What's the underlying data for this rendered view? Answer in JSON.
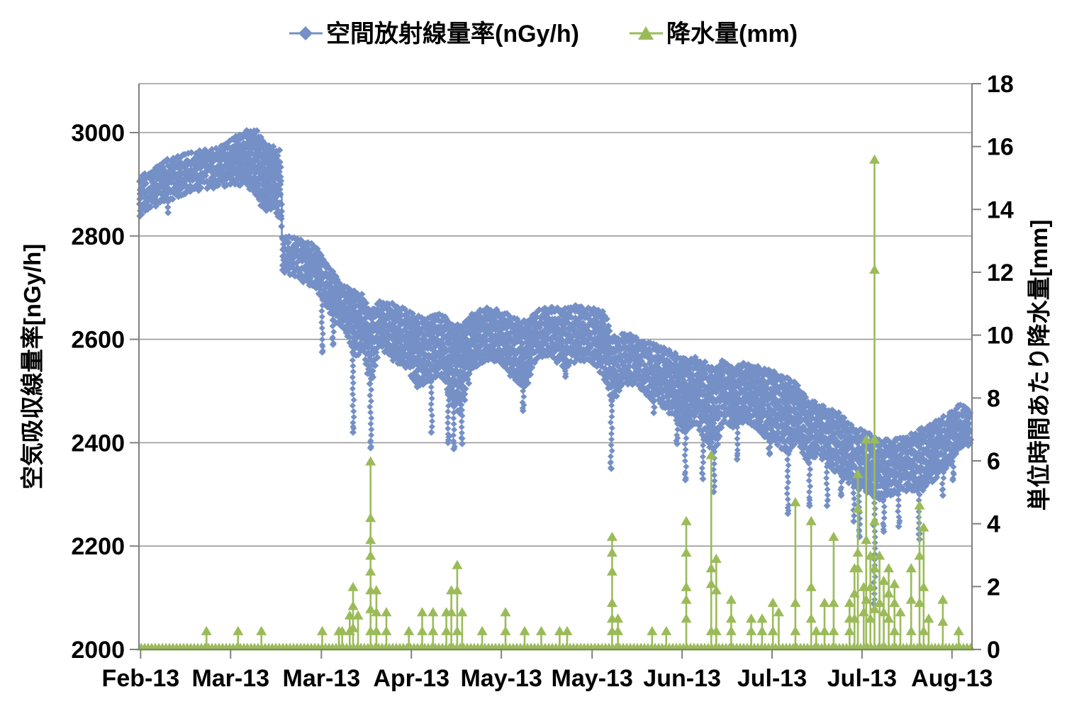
{
  "page": {
    "background": "#ffffff"
  },
  "colors": {
    "radiation_blue": "#7590C6",
    "radiation_blue_line": "#6E89C0",
    "precipitation_green": "#9BBB59",
    "gridline": "#9A9A9A",
    "axis_line": "#808080"
  },
  "legend": {
    "items": [
      {
        "label": "空間放射線量率(nGy/h)",
        "marker": "diamond",
        "color": "#7590C6"
      },
      {
        "label": "降水量(mm)",
        "marker": "triangle",
        "color": "#9BBB59"
      }
    ]
  },
  "chart_data": {
    "type": "scatter",
    "title": "",
    "x_axis": {
      "tick_labels": [
        "Feb-13",
        "Mar-13",
        "Mar-13",
        "Apr-13",
        "May-13",
        "May-13",
        "Jun-13",
        "Jul-13",
        "Jul-13",
        "Aug-13"
      ],
      "tick_positions": [
        0.002,
        0.11,
        0.219,
        0.327,
        0.435,
        0.544,
        0.652,
        0.76,
        0.868,
        0.976
      ]
    },
    "y_axis_left": {
      "title": "空気吸収線量率[nGy/h]",
      "ticks": [
        3000,
        2800,
        2600,
        2400,
        2200,
        2000
      ],
      "min": 2000,
      "max_at_frame_top": 3094
    },
    "y_axis_right": {
      "title": "単位時間あたり降水量[mm]",
      "ticks": [
        18,
        16,
        14,
        12,
        10,
        8,
        6,
        4,
        2,
        0
      ],
      "min": 0,
      "max": 18
    },
    "series": [
      {
        "name": "空間放射線量率(nGy/h)",
        "axis": "left",
        "marker": "diamond",
        "color": "#7590C6",
        "band": [
          [
            0.0,
            2840,
            2910
          ],
          [
            0.029,
            2868,
            2942
          ],
          [
            0.063,
            2888,
            2958
          ],
          [
            0.097,
            2898,
            2968
          ],
          [
            0.127,
            2902,
            3000
          ],
          [
            0.14,
            2882,
            3005
          ],
          [
            0.152,
            2846,
            2978
          ],
          [
            0.161,
            2862,
            2972
          ],
          [
            0.17,
            2830,
            2962
          ],
          [
            0.172,
            2735,
            2800
          ],
          [
            0.191,
            2722,
            2792
          ],
          [
            0.212,
            2700,
            2778
          ],
          [
            0.22,
            2682,
            2758
          ],
          [
            0.233,
            2642,
            2732
          ],
          [
            0.246,
            2620,
            2702
          ],
          [
            0.259,
            2568,
            2692
          ],
          [
            0.269,
            2582,
            2682
          ],
          [
            0.278,
            2508,
            2652
          ],
          [
            0.288,
            2590,
            2672
          ],
          [
            0.306,
            2562,
            2665
          ],
          [
            0.323,
            2542,
            2652
          ],
          [
            0.335,
            2508,
            2642
          ],
          [
            0.348,
            2522,
            2638
          ],
          [
            0.363,
            2532,
            2648
          ],
          [
            0.375,
            2482,
            2632
          ],
          [
            0.386,
            2455,
            2622
          ],
          [
            0.399,
            2542,
            2648
          ],
          [
            0.416,
            2562,
            2658
          ],
          [
            0.433,
            2556,
            2652
          ],
          [
            0.446,
            2532,
            2642
          ],
          [
            0.463,
            2502,
            2632
          ],
          [
            0.476,
            2562,
            2652
          ],
          [
            0.493,
            2572,
            2662
          ],
          [
            0.51,
            2548,
            2658
          ],
          [
            0.527,
            2562,
            2662
          ],
          [
            0.544,
            2560,
            2658
          ],
          [
            0.557,
            2532,
            2652
          ],
          [
            0.569,
            2480,
            2600
          ],
          [
            0.582,
            2518,
            2610
          ],
          [
            0.595,
            2515,
            2602
          ],
          [
            0.612,
            2492,
            2592
          ],
          [
            0.629,
            2472,
            2582
          ],
          [
            0.642,
            2452,
            2572
          ],
          [
            0.654,
            2422,
            2558
          ],
          [
            0.667,
            2442,
            2562
          ],
          [
            0.68,
            2402,
            2552
          ],
          [
            0.691,
            2385,
            2542
          ],
          [
            0.701,
            2442,
            2556
          ],
          [
            0.714,
            2432,
            2546
          ],
          [
            0.727,
            2442,
            2552
          ],
          [
            0.74,
            2432,
            2546
          ],
          [
            0.752,
            2412,
            2540
          ],
          [
            0.765,
            2402,
            2532
          ],
          [
            0.778,
            2382,
            2522
          ],
          [
            0.79,
            2402,
            2512
          ],
          [
            0.803,
            2362,
            2482
          ],
          [
            0.816,
            2382,
            2472
          ],
          [
            0.829,
            2352,
            2462
          ],
          [
            0.842,
            2342,
            2452
          ],
          [
            0.854,
            2322,
            2432
          ],
          [
            0.867,
            2312,
            2422
          ],
          [
            0.88,
            2302,
            2412
          ],
          [
            0.893,
            2292,
            2402
          ],
          [
            0.906,
            2302,
            2402
          ],
          [
            0.923,
            2312,
            2412
          ],
          [
            0.935,
            2302,
            2422
          ],
          [
            0.948,
            2322,
            2432
          ],
          [
            0.961,
            2342,
            2442
          ],
          [
            0.974,
            2362,
            2456
          ],
          [
            0.986,
            2392,
            2470
          ],
          [
            1.0,
            2402,
            2465
          ]
        ],
        "dips": [
          [
            0.035,
            2845
          ],
          [
            0.22,
            2575
          ],
          [
            0.233,
            2590
          ],
          [
            0.257,
            2420
          ],
          [
            0.278,
            2390
          ],
          [
            0.334,
            2508
          ],
          [
            0.351,
            2420
          ],
          [
            0.371,
            2400
          ],
          [
            0.378,
            2388
          ],
          [
            0.388,
            2398
          ],
          [
            0.461,
            2462
          ],
          [
            0.512,
            2528
          ],
          [
            0.567,
            2350
          ],
          [
            0.618,
            2458
          ],
          [
            0.646,
            2398
          ],
          [
            0.656,
            2328
          ],
          [
            0.677,
            2330
          ],
          [
            0.69,
            2305
          ],
          [
            0.718,
            2368
          ],
          [
            0.757,
            2378
          ],
          [
            0.779,
            2263
          ],
          [
            0.805,
            2278
          ],
          [
            0.826,
            2278
          ],
          [
            0.843,
            2298
          ],
          [
            0.858,
            2248
          ],
          [
            0.865,
            2218
          ],
          [
            0.883,
            2078
          ],
          [
            0.894,
            2228
          ],
          [
            0.912,
            2238
          ],
          [
            0.937,
            2213
          ],
          [
            0.965,
            2298
          ],
          [
            0.977,
            2328
          ]
        ],
        "step_drop": {
          "t": 0.1715,
          "from": 2885,
          "to": 2795
        }
      },
      {
        "name": "降水量(mm)",
        "axis": "right",
        "marker": "triangle",
        "color": "#9BBB59",
        "baseline_mm": 0,
        "spikes": [
          [
            0.081,
            [
              0.6
            ]
          ],
          [
            0.119,
            [
              0.6
            ]
          ],
          [
            0.147,
            [
              0.6
            ]
          ],
          [
            0.22,
            [
              0.6
            ]
          ],
          [
            0.24,
            [
              0.6
            ]
          ],
          [
            0.244,
            [
              0.6
            ]
          ],
          [
            0.253,
            [
              1.1,
              0.6
            ]
          ],
          [
            0.257,
            [
              2.0,
              1.4,
              0.7
            ]
          ],
          [
            0.263,
            [
              1.1
            ]
          ],
          [
            0.278,
            [
              6.0,
              4.2,
              3.5,
              3.0,
              2.5,
              1.9,
              1.3,
              0.6
            ]
          ],
          [
            0.285,
            [
              1.9,
              1.2,
              0.6
            ]
          ],
          [
            0.297,
            [
              1.2,
              0.6
            ]
          ],
          [
            0.324,
            [
              0.6
            ]
          ],
          [
            0.34,
            [
              1.2,
              0.6
            ]
          ],
          [
            0.353,
            [
              1.2,
              0.6
            ]
          ],
          [
            0.369,
            [
              1.2,
              0.6
            ]
          ],
          [
            0.375,
            [
              1.9,
              1.2
            ]
          ],
          [
            0.382,
            [
              2.7,
              1.9,
              0.6
            ]
          ],
          [
            0.388,
            [
              1.2
            ]
          ],
          [
            0.412,
            [
              0.6
            ]
          ],
          [
            0.44,
            [
              1.2,
              0.6
            ]
          ],
          [
            0.463,
            [
              0.6
            ]
          ],
          [
            0.483,
            [
              0.6
            ]
          ],
          [
            0.505,
            [
              0.6
            ]
          ],
          [
            0.514,
            [
              0.6
            ]
          ],
          [
            0.568,
            [
              3.6,
              3.1,
              2.5,
              1.5,
              1.0,
              0.6
            ]
          ],
          [
            0.575,
            [
              1.0,
              0.6
            ]
          ],
          [
            0.616,
            [
              0.6
            ]
          ],
          [
            0.633,
            [
              0.6
            ]
          ],
          [
            0.657,
            [
              4.1,
              3.1,
              2.0,
              1.6,
              1.0
            ]
          ],
          [
            0.687,
            [
              6.2,
              2.6,
              2.1,
              0.6
            ]
          ],
          [
            0.693,
            [
              2.9,
              1.9,
              0.6
            ]
          ],
          [
            0.711,
            [
              1.6,
              1.0,
              0.6
            ]
          ],
          [
            0.735,
            [
              1.0,
              0.6
            ]
          ],
          [
            0.748,
            [
              1.0,
              0.6
            ]
          ],
          [
            0.761,
            [
              1.5,
              0.6
            ]
          ],
          [
            0.768,
            [
              1.2
            ]
          ],
          [
            0.788,
            [
              4.7,
              1.5,
              0.6
            ]
          ],
          [
            0.807,
            [
              4.1,
              2.0,
              1.0
            ]
          ],
          [
            0.813,
            [
              0.6
            ]
          ],
          [
            0.823,
            [
              1.5,
              0.6
            ]
          ],
          [
            0.834,
            [
              3.6,
              1.5,
              0.6
            ]
          ],
          [
            0.853,
            [
              1.5,
              1.0,
              0.6
            ]
          ],
          [
            0.859,
            [
              2.6,
              1.8,
              1.0
            ]
          ],
          [
            0.863,
            [
              5.6,
              4.5,
              3.1,
              2.6
            ]
          ],
          [
            0.87,
            [
              2.0,
              1.2
            ]
          ],
          [
            0.873,
            [
              6.7,
              3.5,
              1.6
            ]
          ],
          [
            0.878,
            [
              3.0,
              2.0,
              1.0
            ]
          ],
          [
            0.883,
            [
              15.6,
              12.1,
              6.7,
              4.1,
              2.6,
              1.3
            ]
          ],
          [
            0.889,
            [
              3.0,
              1.5
            ]
          ],
          [
            0.894,
            [
              2.2,
              1.2
            ]
          ],
          [
            0.9,
            [
              2.6,
              1.8,
              1.0
            ]
          ],
          [
            0.907,
            [
              2.1,
              1.5,
              0.6
            ]
          ],
          [
            0.914,
            [
              1.2
            ]
          ],
          [
            0.927,
            [
              2.6,
              1.6,
              0.6
            ]
          ],
          [
            0.937,
            [
              4.6,
              3.0,
              1.5
            ]
          ],
          [
            0.942,
            [
              3.9,
              2.0,
              0.6
            ]
          ],
          [
            0.948,
            [
              1.0
            ]
          ],
          [
            0.965,
            [
              1.6,
              0.9
            ]
          ],
          [
            0.984,
            [
              0.6
            ]
          ]
        ]
      }
    ]
  }
}
